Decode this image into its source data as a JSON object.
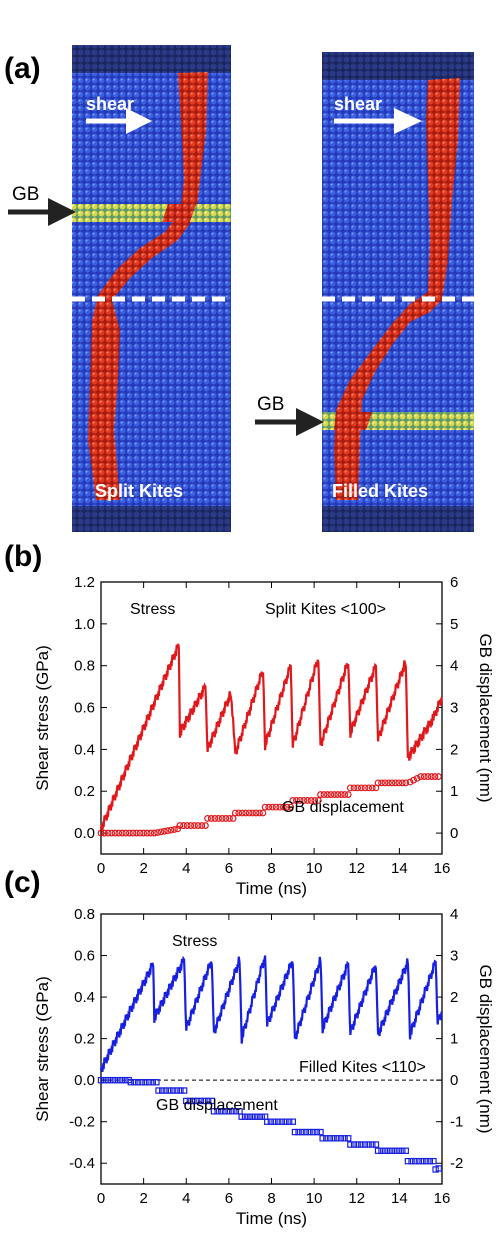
{
  "panels": {
    "a": "(a)",
    "b": "(b)",
    "c": "(c)"
  },
  "panel_a": {
    "left": {
      "shear_label": "shear",
      "gb_label": "GB",
      "caption": "Split Kites"
    },
    "right": {
      "shear_label": "shear",
      "gb_label": "GB",
      "caption": "Filled Kites"
    },
    "colors": {
      "background_atoms": "#2a49d0",
      "deformed_atoms": "#cc2a18",
      "boundary_atoms": "#c8d84a",
      "dashed_line": "#ffffff",
      "arrow_white": "#ffffff",
      "arrow_black": "#222222"
    }
  },
  "chart_data": [
    {
      "type": "line",
      "panel": "(b)",
      "title": "",
      "xlabel": "Time (ns)",
      "ylabel": "Shear stress (GPa)",
      "y2label": "GB displacement (nm)",
      "xlim": [
        0,
        16
      ],
      "ylim": [
        -0.1,
        1.2
      ],
      "y2lim": [
        -0.5,
        6
      ],
      "xticks": [
        "0",
        "2",
        "4",
        "6",
        "8",
        "10",
        "12",
        "14",
        "16"
      ],
      "yticks": [
        "0.0",
        "0.2",
        "0.4",
        "0.6",
        "0.8",
        "1.0",
        "1.2"
      ],
      "y2ticks": [
        "0",
        "1",
        "2",
        "3",
        "4",
        "5",
        "6"
      ],
      "annotations": [
        "Stress",
        "Split Kites <100>",
        "GB displacement"
      ],
      "series": [
        {
          "color": "#e0181c",
          "axis": "left",
          "style": "line",
          "x": [
            0,
            3.65,
            3.7,
            4.9,
            5.0,
            6.1,
            6.3,
            7.6,
            7.7,
            8.9,
            9.0,
            10.2,
            10.3,
            11.6,
            11.7,
            12.9,
            13.0,
            14.3,
            14.4,
            15.6,
            16.0
          ],
          "y": [
            0.02,
            0.9,
            0.48,
            0.7,
            0.4,
            0.67,
            0.38,
            0.78,
            0.42,
            0.8,
            0.42,
            0.84,
            0.42,
            0.82,
            0.48,
            0.8,
            0.45,
            0.82,
            0.36,
            0.55,
            0.65
          ]
        },
        {
          "color": "#e0181c",
          "axis": "right",
          "style": "markers",
          "x": [
            0,
            2.5,
            3.6,
            3.7,
            4.9,
            5.0,
            6.2,
            6.3,
            7.6,
            7.7,
            8.9,
            9.0,
            10.2,
            10.3,
            11.6,
            11.7,
            12.9,
            13.0,
            14.3,
            14.5,
            15.0,
            16.0
          ],
          "y": [
            0,
            0,
            0.1,
            0.18,
            0.18,
            0.35,
            0.35,
            0.48,
            0.48,
            0.62,
            0.62,
            0.78,
            0.78,
            0.92,
            0.92,
            1.08,
            1.08,
            1.2,
            1.2,
            1.22,
            1.35,
            1.35
          ]
        }
      ]
    },
    {
      "type": "line",
      "panel": "(c)",
      "title": "",
      "xlabel": "Time (ns)",
      "ylabel": "Shear stress (GPa)",
      "y2label": "GB displacement (nm)",
      "xlim": [
        0,
        16
      ],
      "ylim": [
        -0.5,
        0.8
      ],
      "y2lim": [
        -2.5,
        4
      ],
      "xticks": [
        "0",
        "2",
        "4",
        "6",
        "8",
        "10",
        "12",
        "14",
        "16"
      ],
      "yticks": [
        "-0.4",
        "-0.2",
        "0.0",
        "0.2",
        "0.4",
        "0.6",
        "0.8"
      ],
      "y2ticks": [
        "-2",
        "-1",
        "0",
        "1",
        "2",
        "3",
        "4"
      ],
      "annotations": [
        "Stress",
        "Filled Kites <110>",
        "GB displacement"
      ],
      "zero_line": true,
      "series": [
        {
          "color": "#1820e0",
          "axis": "left",
          "style": "line",
          "x": [
            0,
            2.45,
            2.5,
            3.9,
            4.0,
            5.2,
            5.3,
            6.5,
            6.6,
            7.7,
            7.8,
            9.0,
            9.1,
            10.3,
            10.4,
            11.6,
            11.7,
            12.9,
            13.0,
            14.4,
            14.5,
            15.7,
            15.8,
            16.0
          ],
          "y": [
            0.05,
            0.56,
            0.3,
            0.58,
            0.25,
            0.58,
            0.23,
            0.58,
            0.2,
            0.6,
            0.27,
            0.58,
            0.2,
            0.58,
            0.25,
            0.56,
            0.23,
            0.56,
            0.22,
            0.57,
            0.22,
            0.57,
            0.28,
            0.33
          ]
        },
        {
          "color": "#1820e0",
          "axis": "right",
          "style": "markers",
          "x": [
            0,
            1.3,
            1.4,
            2.6,
            2.7,
            3.9,
            4.0,
            5.2,
            5.3,
            6.5,
            6.6,
            7.7,
            7.8,
            9.0,
            9.1,
            10.3,
            10.4,
            11.6,
            11.7,
            12.9,
            13.0,
            14.3,
            14.4,
            15.6,
            15.7,
            16.0
          ],
          "y": [
            0,
            0,
            -0.05,
            -0.05,
            -0.25,
            -0.25,
            -0.5,
            -0.5,
            -0.75,
            -0.75,
            -0.88,
            -0.88,
            -1.0,
            -1.0,
            -1.25,
            -1.25,
            -1.4,
            -1.4,
            -1.55,
            -1.55,
            -1.7,
            -1.7,
            -1.95,
            -1.95,
            -2.15,
            -2.1
          ]
        }
      ]
    }
  ]
}
